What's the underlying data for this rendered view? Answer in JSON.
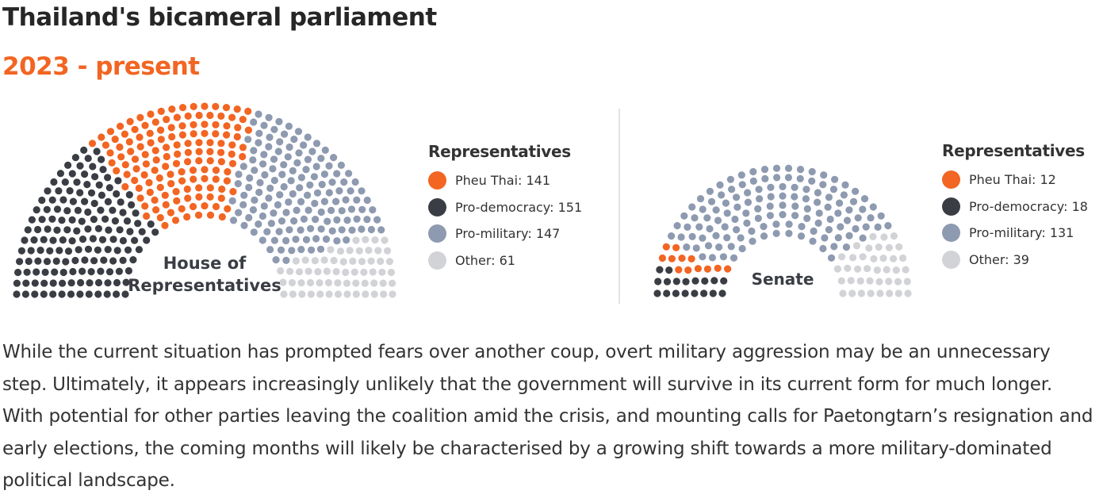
{
  "header": {
    "title": "Thailand's bicameral parliament",
    "subtitle": "2023 - present"
  },
  "chart_data": [
    {
      "type": "parliament",
      "label_line1": "House of",
      "label_line2": "Representatives",
      "legend_title": "Representatives",
      "series": [
        {
          "name": "Pheu Thai",
          "value": 141,
          "label": "Pheu Thai: 141",
          "color": "#f26522"
        },
        {
          "name": "Pro-democracy",
          "value": 151,
          "label": "Pro-democracy: 151",
          "color": "#3a3d44"
        },
        {
          "name": "Pro-military",
          "value": 147,
          "label": "Pro-military: 147",
          "color": "#8e9ab0"
        },
        {
          "name": "Other",
          "value": 61,
          "label": "Other: 61",
          "color": "#d2d3d6"
        }
      ],
      "seat_order": [
        "Pro-democracy",
        "Pheu Thai",
        "Pro-military",
        "Other"
      ]
    },
    {
      "type": "parliament",
      "label_line1": "Senate",
      "legend_title": "Representatives",
      "series": [
        {
          "name": "Pheu Thai",
          "value": 12,
          "label": "Pheu Thai: 12",
          "color": "#f26522"
        },
        {
          "name": "Pro-democracy",
          "value": 18,
          "label": "Pro-democracy: 18",
          "color": "#3a3d44"
        },
        {
          "name": "Pro-military",
          "value": 131,
          "label": "Pro-military: 131",
          "color": "#8e9ab0"
        },
        {
          "name": "Other",
          "value": 39,
          "label": "Other: 39",
          "color": "#d2d3d6"
        }
      ],
      "seat_order": [
        "Pro-democracy",
        "Pheu Thai",
        "Pro-military",
        "Other"
      ]
    }
  ],
  "body": {
    "paragraph": "While the current situation has prompted fears over another coup, overt military aggression may be an unnecessary step. Ultimately, it appears increasingly unlikely that the government will survive in its current form for much longer. With potential for other parties leaving the coalition amid the crisis, and mounting calls for Paetongtarn’s resignation and early elections, the coming months will likely be characterised by a growing shift towards a more military-dominated political landscape."
  }
}
